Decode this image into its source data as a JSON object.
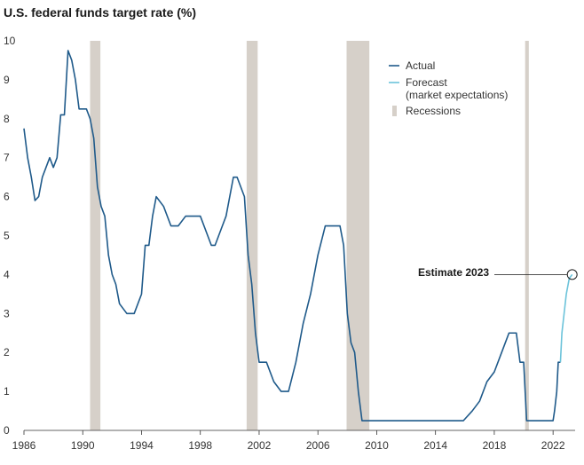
{
  "chart_data": {
    "type": "line",
    "title": "U.S. federal funds target rate (%)",
    "xlabel": "",
    "ylabel": "",
    "xlim": [
      1986,
      2023.5
    ],
    "ylim": [
      0,
      10
    ],
    "x_ticks": [
      1986,
      1990,
      1994,
      1998,
      2002,
      2006,
      2010,
      2014,
      2018,
      2022
    ],
    "y_ticks": [
      0,
      1,
      2,
      3,
      4,
      5,
      6,
      7,
      8,
      9,
      10
    ],
    "grid": false,
    "legend_position": "top-right",
    "colors": {
      "actual": "#1f5a8a",
      "forecast": "#6cc3da",
      "recession": "#d6d0c9"
    },
    "series": [
      {
        "name": "Actual",
        "x": [
          1986.0,
          1986.25,
          1986.5,
          1986.75,
          1987.0,
          1987.25,
          1987.5,
          1987.75,
          1988.0,
          1988.25,
          1988.5,
          1988.75,
          1989.0,
          1989.25,
          1989.5,
          1989.75,
          1990.0,
          1990.25,
          1990.5,
          1990.75,
          1991.0,
          1991.25,
          1991.5,
          1991.75,
          1992.0,
          1992.25,
          1992.5,
          1993.0,
          1993.5,
          1994.0,
          1994.25,
          1994.5,
          1994.75,
          1995.0,
          1995.5,
          1996.0,
          1996.5,
          1997.0,
          1997.5,
          1998.0,
          1998.75,
          1999.0,
          1999.25,
          1999.5,
          1999.75,
          2000.0,
          2000.25,
          2000.5,
          2001.0,
          2001.25,
          2001.5,
          2001.75,
          2002.0,
          2002.5,
          2003.0,
          2003.5,
          2004.0,
          2004.5,
          2004.75,
          2005.0,
          2005.5,
          2006.0,
          2006.5,
          2007.0,
          2007.5,
          2007.75,
          2008.0,
          2008.25,
          2008.5,
          2008.75,
          2009.0,
          2010.0,
          2012.0,
          2014.0,
          2015.9,
          2016.5,
          2017.0,
          2017.5,
          2018.0,
          2018.5,
          2019.0,
          2019.5,
          2019.75,
          2020.0,
          2020.2,
          2021.0,
          2022.0,
          2022.1,
          2022.25,
          2022.35,
          2022.5
        ],
        "values": [
          7.75,
          7.0,
          6.5,
          5.9,
          6.0,
          6.5,
          6.75,
          7.0,
          6.75,
          7.0,
          8.1,
          8.1,
          9.75,
          9.5,
          9.0,
          8.25,
          8.25,
          8.25,
          8.0,
          7.5,
          6.25,
          5.75,
          5.5,
          4.5,
          4.0,
          3.75,
          3.25,
          3.0,
          3.0,
          3.5,
          4.75,
          4.75,
          5.5,
          6.0,
          5.75,
          5.25,
          5.25,
          5.5,
          5.5,
          5.5,
          4.75,
          4.75,
          5.0,
          5.25,
          5.5,
          6.0,
          6.5,
          6.5,
          6.0,
          4.5,
          3.75,
          2.5,
          1.75,
          1.75,
          1.25,
          1.0,
          1.0,
          1.75,
          2.25,
          2.75,
          3.5,
          4.5,
          5.25,
          5.25,
          5.25,
          4.75,
          3.0,
          2.25,
          2.0,
          1.0,
          0.25,
          0.25,
          0.25,
          0.25,
          0.25,
          0.5,
          0.75,
          1.25,
          1.5,
          2.0,
          2.5,
          2.5,
          1.75,
          1.75,
          0.25,
          0.25,
          0.25,
          0.5,
          1.0,
          1.75,
          1.75
        ]
      },
      {
        "name": "Forecast\n(market expectations)",
        "x": [
          2022.5,
          2022.6,
          2022.75,
          2022.9,
          2023.1,
          2023.3
        ],
        "values": [
          1.75,
          2.5,
          3.0,
          3.5,
          3.9,
          4.0
        ]
      }
    ],
    "recessions": [
      {
        "start": 1990.5,
        "end": 1991.2
      },
      {
        "start": 2001.15,
        "end": 2001.9
      },
      {
        "start": 2007.95,
        "end": 2009.5
      },
      {
        "start": 2020.1,
        "end": 2020.35
      }
    ],
    "legend": {
      "actual": "Actual",
      "forecast_line1": "Forecast",
      "forecast_line2": "(market expectations)",
      "recessions": "Recessions"
    },
    "annotation": {
      "text": "Estimate 2023",
      "x": 2023.3,
      "y": 4.0
    }
  }
}
